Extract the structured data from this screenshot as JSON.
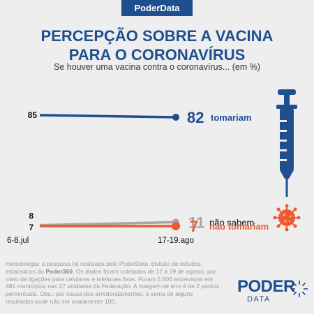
{
  "brand": "PoderData",
  "title_line1": "PERCEPÇÃO SOBRE A VACINA",
  "title_line2": "PARA O CORONAVÍRUS",
  "subtitle": "Se houver uma vacina contra o coronavírus... (em %)",
  "chart_data": {
    "type": "line",
    "x": [
      "6-8.jul",
      "17-19.ago"
    ],
    "series": [
      {
        "name": "tomariam",
        "values": [
          85,
          82
        ],
        "color": "#1f4f8f"
      },
      {
        "name": "não sabem",
        "values": [
          8,
          11
        ],
        "color": "#a6a6a6"
      },
      {
        "name": "não tomariam",
        "values": [
          7,
          7
        ],
        "color": "#ee5a2f"
      }
    ]
  },
  "methodology": {
    "part1": "metodologia: a pesquisa foi realizada pelo PoderData, divisão de estudos estatísticos do ",
    "bold": "Poder360",
    "part2": ". Os dados foram coletados de 17 a 19 de agosto, por meio de ligações para celulares e telefones fixos. Foram 2.500 entrevistas em 481 municípios nas 27 unidades da Federação. A margem de erro é de 2 pontos percentuais. Obs.: por causa dos arredondamentos, a soma de alguns resultados pode não ser exatamente 100."
  },
  "logo": {
    "top": "PODER",
    "bottom": "DATA"
  },
  "icons": [
    "syringe-icon",
    "virus-icon"
  ]
}
